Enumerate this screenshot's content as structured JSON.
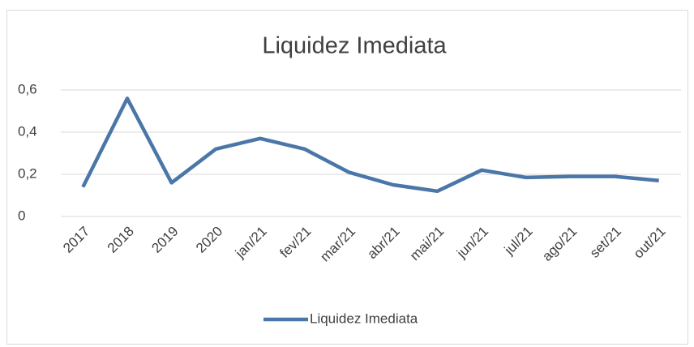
{
  "chart_data": {
    "type": "line",
    "title": "Liquidez Imediata",
    "categories": [
      "2017",
      "2018",
      "2019",
      "2020",
      "jan/21",
      "fev/21",
      "mar/21",
      "abr/21",
      "mai/21",
      "jun/21",
      "jul/21",
      "ago/21",
      "set/21",
      "out/21"
    ],
    "series": [
      {
        "name": "Liquidez Imediata",
        "color": "#4a76a8",
        "values": [
          0.14,
          0.56,
          0.16,
          0.32,
          0.37,
          0.32,
          0.21,
          0.15,
          0.12,
          0.22,
          0.185,
          0.19,
          0.19,
          0.17
        ]
      }
    ],
    "ylim": [
      0,
      0.6
    ],
    "yticks": [
      0,
      {
        "value": 0.2,
        "label": "0,2"
      },
      {
        "value": 0.4,
        "label": "0,4"
      },
      {
        "value": 0.6,
        "label": "0,6"
      }
    ],
    "grid": true,
    "legend": "bottom"
  }
}
